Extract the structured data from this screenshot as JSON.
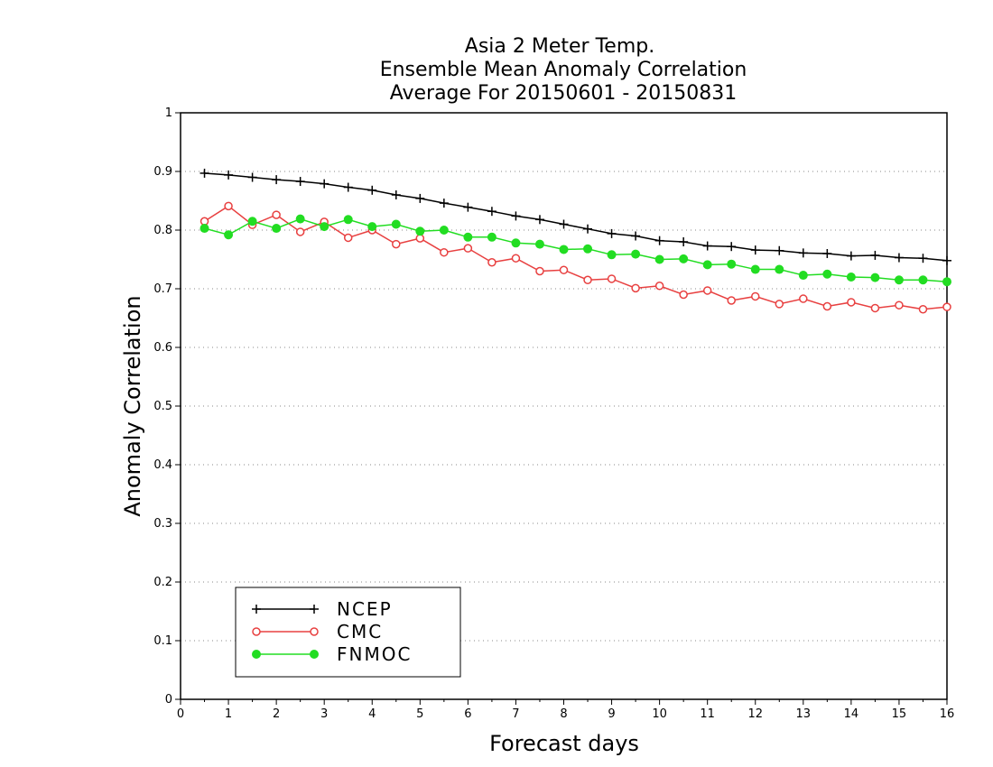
{
  "chart_data": {
    "type": "line",
    "title": [
      "Asia 2 Meter Temp.",
      "Ensemble Mean Anomaly Correlation",
      "Average For 20150601 - 20150831"
    ],
    "xlabel": "Forecast days",
    "ylabel": "Anomaly Correlation",
    "xlim": [
      0,
      16
    ],
    "ylim": [
      0,
      1
    ],
    "xticks": [
      "0",
      "1",
      "2",
      "3",
      "4",
      "5",
      "6",
      "7",
      "8",
      "9",
      "10",
      "11",
      "12",
      "13",
      "14",
      "15",
      "16"
    ],
    "yticks": [
      "0",
      "0.1",
      "0.2",
      "0.3",
      "0.4",
      "0.5",
      "0.6",
      "0.7",
      "0.8",
      "0.9",
      "1"
    ],
    "grid": "horizontal-dotted",
    "legend_position": "bottom-left",
    "x": [
      0.5,
      1,
      1.5,
      2,
      2.5,
      3,
      3.5,
      4,
      4.5,
      5,
      5.5,
      6,
      6.5,
      7,
      7.5,
      8,
      8.5,
      9,
      9.5,
      10,
      10.5,
      11,
      11.5,
      12,
      12.5,
      13,
      13.5,
      14,
      14.5,
      15,
      15.5,
      16
    ],
    "series": [
      {
        "name": "NCEP",
        "color": "#000000",
        "marker": "plus",
        "values": [
          0.897,
          0.894,
          0.89,
          0.886,
          0.883,
          0.879,
          0.873,
          0.868,
          0.86,
          0.854,
          0.846,
          0.839,
          0.832,
          0.824,
          0.818,
          0.81,
          0.802,
          0.794,
          0.79,
          0.782,
          0.78,
          0.773,
          0.772,
          0.766,
          0.765,
          0.761,
          0.76,
          0.756,
          0.757,
          0.753,
          0.752,
          0.748
        ]
      },
      {
        "name": "CMC",
        "color": "#e84040",
        "marker": "open-circle",
        "values": [
          0.815,
          0.841,
          0.809,
          0.826,
          0.797,
          0.814,
          0.787,
          0.8,
          0.776,
          0.786,
          0.762,
          0.769,
          0.745,
          0.752,
          0.73,
          0.732,
          0.715,
          0.717,
          0.701,
          0.705,
          0.69,
          0.697,
          0.68,
          0.687,
          0.674,
          0.683,
          0.67,
          0.677,
          0.667,
          0.672,
          0.665,
          0.669
        ]
      },
      {
        "name": "FNMOC",
        "color": "#22dd22",
        "marker": "filled-circle",
        "values": [
          0.803,
          0.792,
          0.815,
          0.803,
          0.819,
          0.806,
          0.818,
          0.806,
          0.81,
          0.798,
          0.8,
          0.788,
          0.788,
          0.778,
          0.776,
          0.767,
          0.768,
          0.758,
          0.759,
          0.75,
          0.751,
          0.741,
          0.742,
          0.733,
          0.733,
          0.723,
          0.725,
          0.72,
          0.719,
          0.715,
          0.715,
          0.712
        ]
      }
    ]
  }
}
